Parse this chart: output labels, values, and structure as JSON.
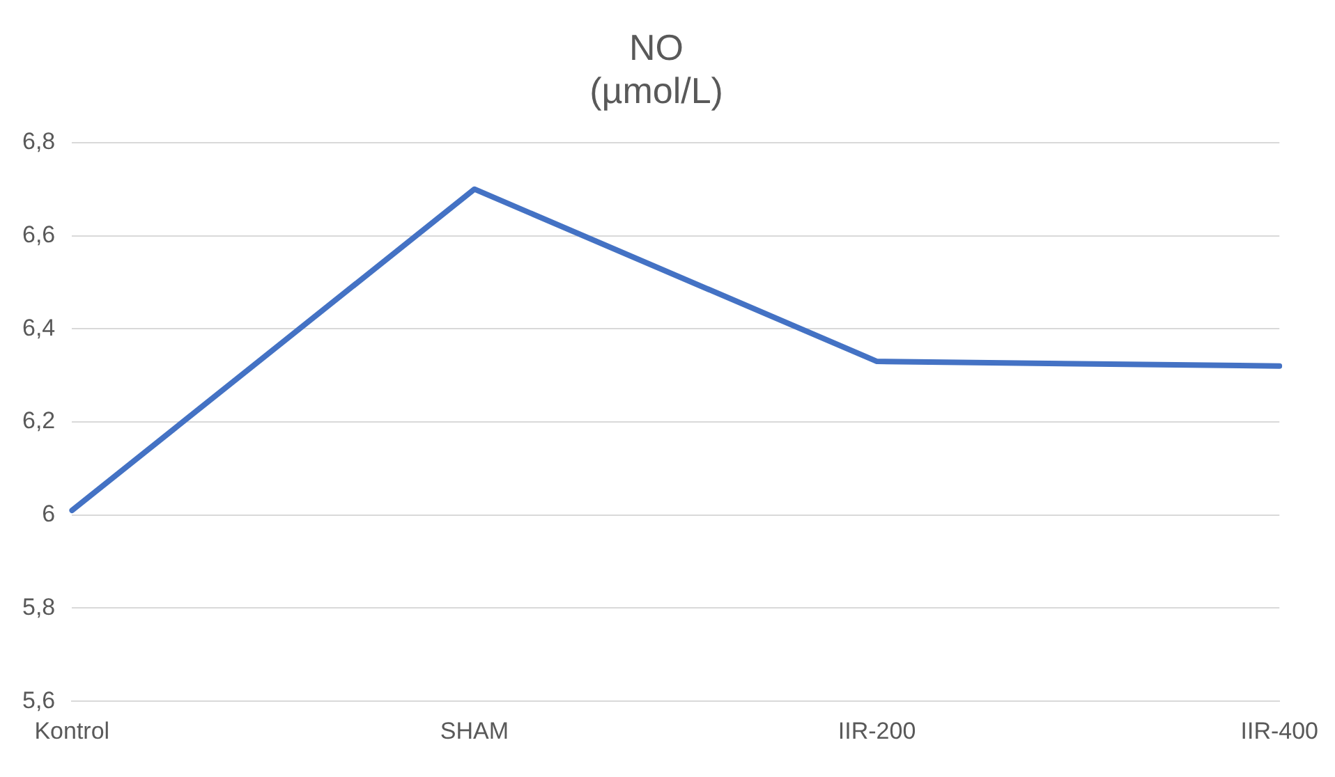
{
  "chart_data": {
    "type": "line",
    "title": "NO\n(µmol/L)",
    "categories": [
      "Kontrol",
      "SHAM",
      "IIR-200",
      "IIR-400"
    ],
    "series": [
      {
        "color": "#4472c4",
        "values": [
          6.01,
          6.7,
          6.33,
          6.32
        ]
      }
    ],
    "ylim": [
      5.6,
      6.8
    ],
    "yticks": [
      {
        "value": 5.6,
        "label": "5,6"
      },
      {
        "value": 5.8,
        "label": "5,8"
      },
      6,
      {
        "value": 6.2,
        "label": "6,2"
      },
      {
        "value": 6.4,
        "label": "6,4"
      },
      {
        "value": 6.6,
        "label": "6,6"
      },
      {
        "value": 6.8,
        "label": "6,8"
      }
    ],
    "grid": "y",
    "legend": false,
    "marker": "none",
    "line_style": "solid"
  }
}
